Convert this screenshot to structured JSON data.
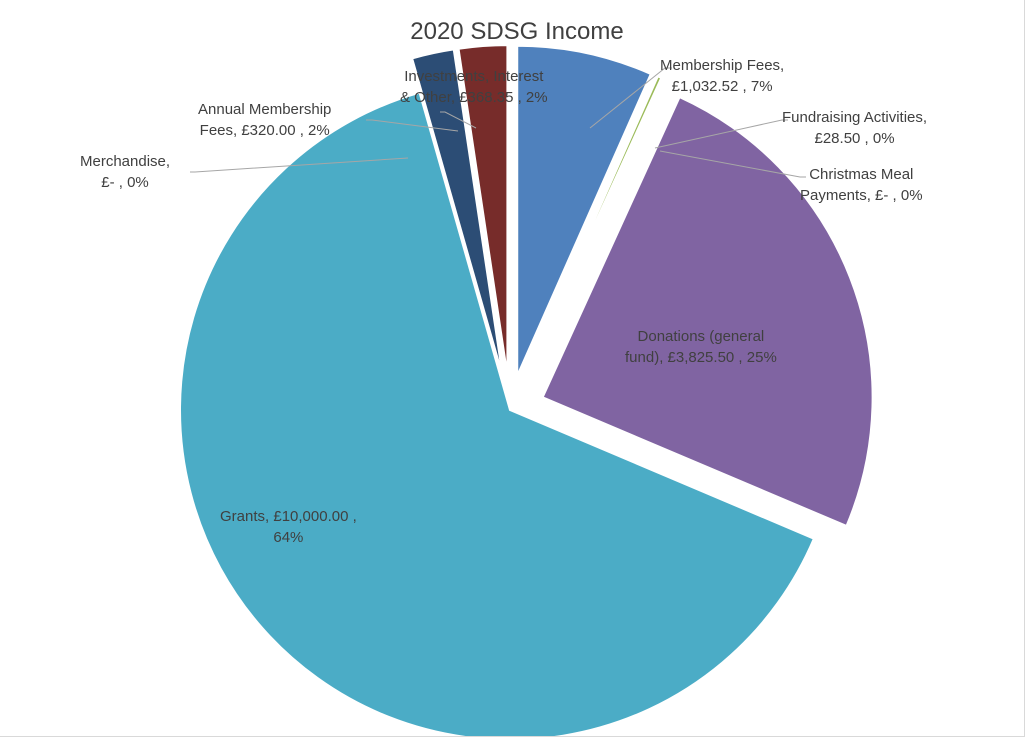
{
  "chart_data": {
    "type": "pie",
    "title": "2020 SDSG Income",
    "currency": "£",
    "slices": [
      {
        "name": "Membership Fees",
        "value": 1032.52,
        "value_label": "£1,032.52",
        "percent_label": "7%",
        "color": "#4f81bd",
        "label_line1": "Membership Fees,",
        "label_line2": "£1,032.52 , 7%"
      },
      {
        "name": "Fundraising Activities",
        "value": 28.5,
        "value_label": "£28.50",
        "percent_label": "0%",
        "color": "#9bbb59",
        "label_line1": "Fundraising Activities,",
        "label_line2": "£28.50 , 0%"
      },
      {
        "name": "Christmas Meal Payments",
        "value": 0,
        "value_label": "£-",
        "percent_label": "0%",
        "color": "#f79646",
        "label_line1": "Christmas Meal",
        "label_line2": "Payments, £- , 0%"
      },
      {
        "name": "Donations (general fund)",
        "value": 3825.5,
        "value_label": "£3,825.50",
        "percent_label": "25%",
        "color": "#8064a2",
        "label_line1": "Donations (general",
        "label_line2": "fund), £3,825.50 , 25%"
      },
      {
        "name": "Grants",
        "value": 10000.0,
        "value_label": "£10,000.00",
        "percent_label": "64%",
        "color": "#4bacc6",
        "label_line1": "Grants, £10,000.00 ,",
        "label_line2": "64%"
      },
      {
        "name": "Merchandise",
        "value": 0,
        "value_label": "£-",
        "percent_label": "0%",
        "color": "#c0504d",
        "label_line1": "Merchandise,",
        "label_line2": "£- , 0%"
      },
      {
        "name": "Annual Membership Fees",
        "value": 320.0,
        "value_label": "£320.00",
        "percent_label": "2%",
        "color": "#2c4d75",
        "label_line1": "Annual Membership",
        "label_line2": "Fees, £320.00 , 2%"
      },
      {
        "name": "Investments, Interest & Other",
        "value": 368.35,
        "value_label": "£368.35",
        "percent_label": "2%",
        "color": "#772c2a",
        "label_line1": "Investments, Interest",
        "label_line2": "& Other, £368.35 , 2%"
      }
    ]
  }
}
